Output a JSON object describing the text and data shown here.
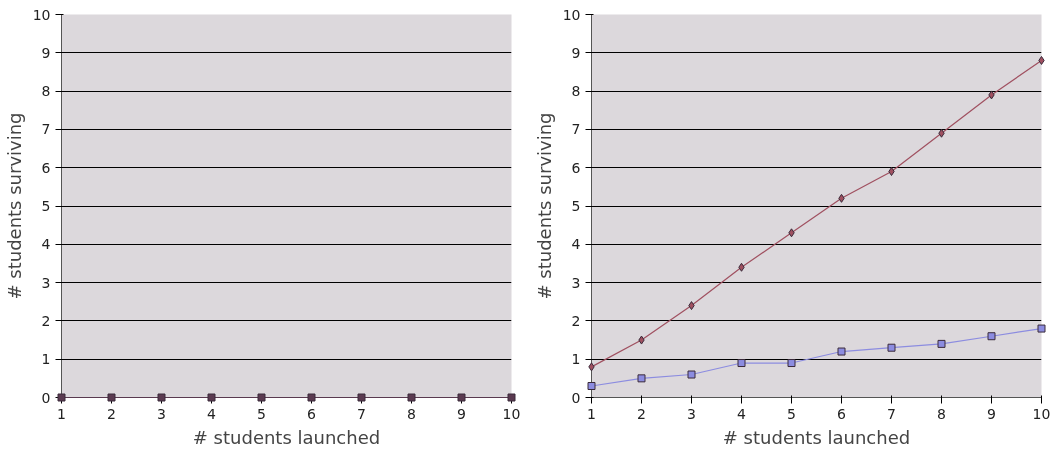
{
  "chart_data": [
    {
      "type": "line",
      "xlabel": "# students launched",
      "ylabel": "# students surviving",
      "x": [
        1,
        2,
        3,
        4,
        5,
        6,
        7,
        8,
        9,
        10
      ],
      "xlim": [
        1,
        10
      ],
      "xticks": [
        1,
        2,
        3,
        4,
        5,
        6,
        7,
        8,
        9,
        10
      ],
      "ylim": [
        0,
        10
      ],
      "yticks": [
        0,
        1,
        2,
        3,
        4,
        5,
        6,
        7,
        8,
        9,
        10
      ],
      "grid": "y",
      "marker": "square",
      "series": [
        {
          "color": "#5a3a50",
          "values": [
            0,
            0,
            0,
            0,
            0,
            0,
            0,
            0,
            0,
            0
          ]
        }
      ]
    },
    {
      "type": "line",
      "xlabel": "# students launched",
      "ylabel": "# students surviving",
      "x": [
        1,
        2,
        3,
        4,
        5,
        6,
        7,
        8,
        9,
        10
      ],
      "xlim": [
        1,
        10
      ],
      "xticks": [
        1,
        2,
        3,
        4,
        5,
        6,
        7,
        8,
        9,
        10
      ],
      "ylim": [
        0,
        10
      ],
      "yticks": [
        0,
        1,
        2,
        3,
        4,
        5,
        6,
        7,
        8,
        9,
        10
      ],
      "grid": "y",
      "series": [
        {
          "color": "#a05060",
          "marker": "diamond",
          "values": [
            0.8,
            1.5,
            2.4,
            3.4,
            4.3,
            5.2,
            5.9,
            6.9,
            7.9,
            8.8
          ]
        },
        {
          "color": "#8c8ce0",
          "marker": "square",
          "values": [
            0.3,
            0.5,
            0.6,
            0.9,
            0.9,
            1.2,
            1.3,
            1.4,
            1.6,
            1.8
          ]
        }
      ]
    }
  ]
}
